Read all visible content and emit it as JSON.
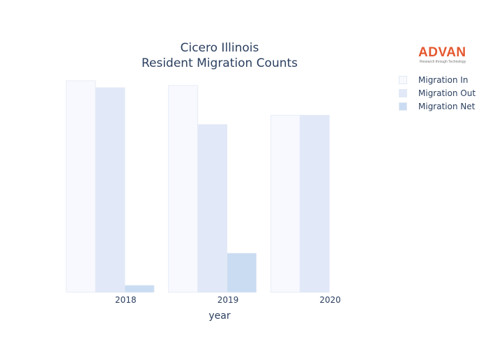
{
  "chart_data": {
    "type": "bar",
    "title": "Cicero Illinois",
    "subtitle": "Resident Migration Counts",
    "xlabel": "year",
    "ylabel": "",
    "categories": [
      "2018",
      "2019",
      "2020"
    ],
    "series": [
      {
        "name": "Migration In",
        "color": "#f7f9fe",
        "values": [
          1000,
          978,
          837
        ]
      },
      {
        "name": "Migration Out",
        "color": "#e1e9f8",
        "values": [
          967,
          793,
          837
        ]
      },
      {
        "name": "Migration Net",
        "color": "#c9dcf2",
        "values": [
          33,
          185,
          0
        ]
      }
    ],
    "ylim": [
      0,
      1000
    ],
    "yaxis_visible": false,
    "grid": false,
    "legend_position": "top-right"
  },
  "logo": {
    "text": "ADVAN",
    "tagline": "Research through Technology"
  },
  "colors": {
    "title": "#2a3f5f",
    "logo": "#e4572e",
    "bar_outline": "#e3e9f5"
  }
}
